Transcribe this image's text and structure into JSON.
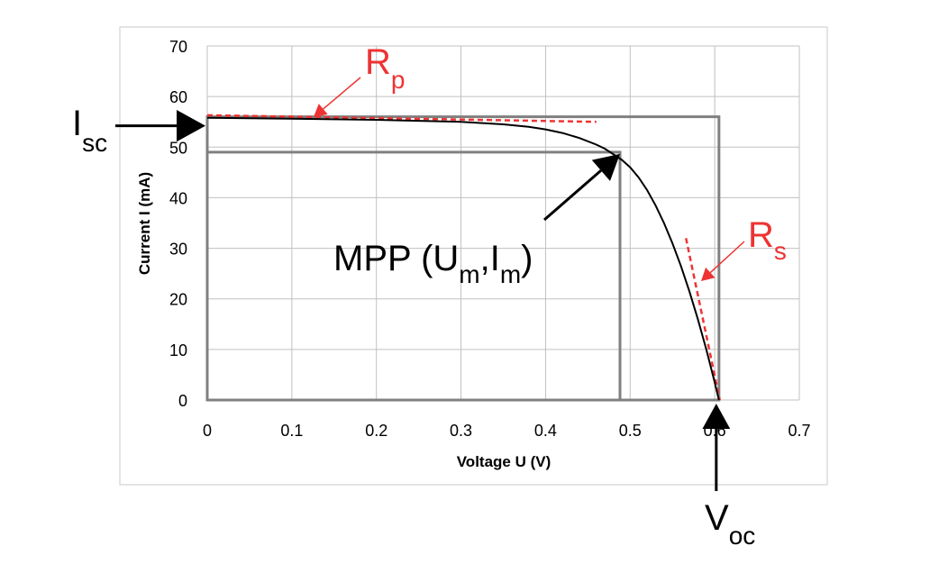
{
  "chart_data": {
    "type": "line",
    "xlabel": "Voltage U (V)",
    "ylabel": "Current I (mA)",
    "xlim": [
      0,
      0.7
    ],
    "ylim": [
      0,
      70
    ],
    "xticks": [
      "0",
      "0.1",
      "0.2",
      "0.3",
      "0.4",
      "0.5",
      "0.6",
      "0.7"
    ],
    "yticks": [
      "0",
      "10",
      "20",
      "30",
      "40",
      "50",
      "60",
      "70"
    ],
    "grid": true,
    "series": [
      {
        "x": [
          0,
          0.05,
          0.1,
          0.15,
          0.2,
          0.25,
          0.3,
          0.35,
          0.38,
          0.4,
          0.42,
          0.44,
          0.46,
          0.47,
          0.48,
          0.49,
          0.5,
          0.51,
          0.52,
          0.53,
          0.54,
          0.55,
          0.56,
          0.57,
          0.58,
          0.59,
          0.6,
          0.605
        ],
        "y": [
          55.8,
          55.7,
          55.6,
          55.5,
          55.4,
          55.2,
          55.0,
          54.5,
          54.0,
          53.5,
          52.8,
          51.8,
          50.5,
          49.7,
          48.6,
          47.5,
          46.0,
          44.0,
          41.5,
          38.5,
          35.0,
          31.0,
          26.5,
          21.5,
          16.0,
          10.0,
          3.5,
          0
        ]
      }
    ],
    "Isc": 56,
    "Voc": 0.605,
    "mpp": {
      "U": 0.488,
      "I": 49
    },
    "annotations": {
      "isc": {
        "main": "I",
        "sub": "sc"
      },
      "voc": {
        "main": "V",
        "sub": "oc"
      },
      "mpp": {
        "main": "MPP (U",
        "sub1": "m",
        "mid": ",I",
        "sub2": "m",
        "end": ")"
      },
      "rp": {
        "main": "R",
        "sub": "p"
      },
      "rs": {
        "main": "R",
        "sub": "s"
      }
    },
    "colors": {
      "curve": "#000000",
      "grid": "#c0c0c0",
      "rect": "#808080",
      "tangent": "#ee3333",
      "arrow": "#000000"
    }
  }
}
